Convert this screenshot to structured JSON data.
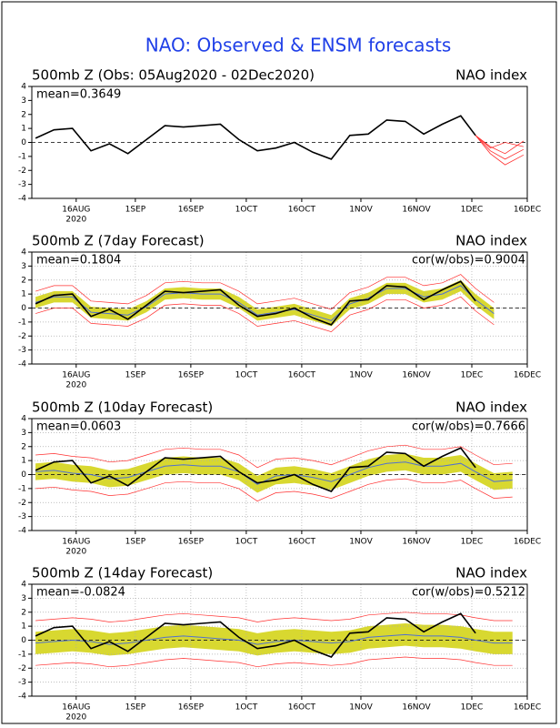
{
  "title": "NAO: Observed & ENSM forecasts",
  "chart_data": [
    {
      "type": "line",
      "title": "500mb Z (Obs: 05Aug2020 - 02Dec2020)",
      "right_title": "NAO index",
      "annotation": "mean=0.3649",
      "x": [
        "2020-08-05",
        "2020-08-10",
        "2020-08-15",
        "2020-08-20",
        "2020-08-25",
        "2020-08-30",
        "2020-09-04",
        "2020-09-09",
        "2020-09-14",
        "2020-09-19",
        "2020-09-24",
        "2020-09-29",
        "2020-10-04",
        "2020-10-09",
        "2020-10-14",
        "2020-10-19",
        "2020-10-24",
        "2020-10-29",
        "2020-11-03",
        "2020-11-08",
        "2020-11-13",
        "2020-11-18",
        "2020-11-23",
        "2020-11-28",
        "2020-12-02"
      ],
      "xlim": [
        "2020-08-04",
        "2020-12-16"
      ],
      "xticks": [
        {
          "value": "2020-08-16",
          "label": "16AUG"
        },
        {
          "value": "2020-09-01",
          "label": "1SEP"
        },
        {
          "value": "2020-09-16",
          "label": "16SEP"
        },
        {
          "value": "2020-10-01",
          "label": "1OCT"
        },
        {
          "value": "2020-10-16",
          "label": "16OCT"
        },
        {
          "value": "2020-11-01",
          "label": "1NOV"
        },
        {
          "value": "2020-11-16",
          "label": "16NOV"
        },
        {
          "value": "2020-12-01",
          "label": "1DEC"
        },
        {
          "value": "2020-12-16",
          "label": "16DEC"
        }
      ],
      "year_label": "2020",
      "ylim": [
        -4,
        4
      ],
      "yticks": [
        -4,
        -3,
        -2,
        -1,
        0,
        1,
        2,
        3,
        4
      ],
      "grid": false,
      "zero_line": true,
      "bands": [],
      "series": [
        {
          "color": "#000000",
          "width": 1.6,
          "values": [
            0.3,
            0.9,
            1.0,
            -0.6,
            -0.1,
            -0.8,
            0.2,
            1.2,
            1.1,
            1.2,
            1.3,
            0.2,
            -0.6,
            -0.4,
            0.0,
            -0.7,
            -1.2,
            0.5,
            0.6,
            1.6,
            1.5,
            0.6,
            1.3,
            1.9,
            0.5
          ]
        },
        {
          "color": "#ff3030",
          "width": 0.8,
          "x": [
            "2020-12-02",
            "2020-12-06",
            "2020-12-10",
            "2020-12-15"
          ],
          "values": [
            0.5,
            -0.6,
            -1.2,
            -0.5
          ]
        },
        {
          "color": "#ff3030",
          "width": 0.8,
          "x": [
            "2020-12-02",
            "2020-12-06",
            "2020-12-10",
            "2020-12-15"
          ],
          "values": [
            0.5,
            -0.3,
            -0.8,
            0.1
          ]
        },
        {
          "color": "#ff3030",
          "width": 0.8,
          "x": [
            "2020-12-02",
            "2020-12-06",
            "2020-12-10",
            "2020-12-15"
          ],
          "values": [
            0.5,
            -0.8,
            -1.6,
            -0.9
          ]
        },
        {
          "color": "#ff3030",
          "width": 0.8,
          "x": [
            "2020-12-02",
            "2020-12-06",
            "2020-12-10",
            "2020-12-15"
          ],
          "values": [
            0.5,
            -0.4,
            0.0,
            -0.3
          ]
        }
      ]
    },
    {
      "type": "line",
      "title": "500mb Z (7day Forecast)",
      "right_title": "NAO index",
      "annotation": "mean=0.1804",
      "annotation_right": "cor(w/obs)=0.9004",
      "x": [
        "2020-08-05",
        "2020-08-10",
        "2020-08-15",
        "2020-08-20",
        "2020-08-25",
        "2020-08-30",
        "2020-09-04",
        "2020-09-09",
        "2020-09-14",
        "2020-09-19",
        "2020-09-24",
        "2020-09-29",
        "2020-10-04",
        "2020-10-09",
        "2020-10-14",
        "2020-10-19",
        "2020-10-24",
        "2020-10-29",
        "2020-11-03",
        "2020-11-08",
        "2020-11-13",
        "2020-11-18",
        "2020-11-23",
        "2020-11-28",
        "2020-12-02",
        "2020-12-07"
      ],
      "xlim": [
        "2020-08-04",
        "2020-12-16"
      ],
      "xticks": [
        {
          "value": "2020-08-16",
          "label": "16AUG"
        },
        {
          "value": "2020-09-01",
          "label": "1SEP"
        },
        {
          "value": "2020-09-16",
          "label": "16SEP"
        },
        {
          "value": "2020-10-01",
          "label": "1OCT"
        },
        {
          "value": "2020-10-16",
          "label": "16OCT"
        },
        {
          "value": "2020-11-01",
          "label": "1NOV"
        },
        {
          "value": "2020-11-16",
          "label": "16NOV"
        },
        {
          "value": "2020-12-01",
          "label": "1DEC"
        },
        {
          "value": "2020-12-16",
          "label": "16DEC"
        }
      ],
      "year_label": "2020",
      "ylim": [
        -4,
        4
      ],
      "yticks": [
        -4,
        -3,
        -2,
        -1,
        0,
        1,
        2,
        3,
        4
      ],
      "grid": true,
      "zero_line": true,
      "bands": [
        {
          "color": "#d8d830",
          "low": [
            0.0,
            0.4,
            0.4,
            -0.7,
            -0.8,
            -0.9,
            -0.3,
            0.6,
            0.7,
            0.6,
            0.6,
            0.0,
            -0.9,
            -0.7,
            -0.5,
            -0.9,
            -1.3,
            -0.1,
            0.3,
            1.0,
            1.0,
            0.4,
            0.6,
            1.2,
            0.2,
            -0.8
          ],
          "high": [
            0.8,
            1.2,
            1.2,
            0.1,
            0.0,
            -0.1,
            0.5,
            1.4,
            1.5,
            1.4,
            1.4,
            0.8,
            -0.1,
            0.1,
            0.3,
            -0.1,
            -0.5,
            0.7,
            1.1,
            1.8,
            1.8,
            1.2,
            1.4,
            2.0,
            1.0,
            0.0
          ]
        }
      ],
      "series": [
        {
          "color": "#ff3030",
          "width": 0.7,
          "values": [
            -0.4,
            0.0,
            0.0,
            -1.1,
            -1.2,
            -1.3,
            -0.7,
            0.2,
            0.3,
            0.2,
            0.2,
            -0.4,
            -1.3,
            -1.1,
            -0.9,
            -1.3,
            -1.7,
            -0.5,
            -0.1,
            0.6,
            0.6,
            0.0,
            0.2,
            0.8,
            -0.2,
            -1.2
          ]
        },
        {
          "color": "#ff3030",
          "width": 0.7,
          "values": [
            1.2,
            1.6,
            1.6,
            0.5,
            0.4,
            0.3,
            0.9,
            1.8,
            1.9,
            1.8,
            1.8,
            1.2,
            0.3,
            0.5,
            0.7,
            0.3,
            -0.1,
            1.1,
            1.5,
            2.2,
            2.2,
            1.6,
            1.8,
            2.4,
            1.4,
            0.4
          ]
        },
        {
          "color": "#5070d0",
          "width": 1,
          "values": [
            0.4,
            0.8,
            0.8,
            -0.3,
            -0.4,
            -0.5,
            0.1,
            1.0,
            1.1,
            1.0,
            1.0,
            0.4,
            -0.5,
            -0.3,
            -0.1,
            -0.5,
            -0.9,
            0.3,
            0.7,
            1.4,
            1.4,
            0.8,
            1.0,
            1.6,
            0.6,
            -0.4
          ]
        },
        {
          "color": "#000000",
          "width": 1.6,
          "values": [
            0.3,
            0.9,
            1.0,
            -0.6,
            -0.1,
            -0.8,
            0.2,
            1.2,
            1.1,
            1.2,
            1.3,
            0.2,
            -0.6,
            -0.4,
            0.0,
            -0.7,
            -1.2,
            0.5,
            0.6,
            1.6,
            1.5,
            0.6,
            1.3,
            1.9,
            0.5,
            null
          ]
        }
      ]
    },
    {
      "type": "line",
      "title": "500mb Z (10day Forecast)",
      "right_title": "NAO index",
      "annotation": "mean=0.0603",
      "annotation_right": "cor(w/obs)=0.7666",
      "x": [
        "2020-08-05",
        "2020-08-10",
        "2020-08-15",
        "2020-08-20",
        "2020-08-25",
        "2020-08-30",
        "2020-09-04",
        "2020-09-09",
        "2020-09-14",
        "2020-09-19",
        "2020-09-24",
        "2020-09-29",
        "2020-10-04",
        "2020-10-09",
        "2020-10-14",
        "2020-10-19",
        "2020-10-24",
        "2020-10-29",
        "2020-11-03",
        "2020-11-08",
        "2020-11-13",
        "2020-11-18",
        "2020-11-23",
        "2020-11-28",
        "2020-12-02",
        "2020-12-07",
        "2020-12-12"
      ],
      "xlim": [
        "2020-08-04",
        "2020-12-16"
      ],
      "xticks": [
        {
          "value": "2020-08-16",
          "label": "16AUG"
        },
        {
          "value": "2020-09-01",
          "label": "1SEP"
        },
        {
          "value": "2020-09-16",
          "label": "16SEP"
        },
        {
          "value": "2020-10-01",
          "label": "1OCT"
        },
        {
          "value": "2020-10-16",
          "label": "16OCT"
        },
        {
          "value": "2020-11-01",
          "label": "1NOV"
        },
        {
          "value": "2020-11-16",
          "label": "16NOV"
        },
        {
          "value": "2020-12-01",
          "label": "1DEC"
        },
        {
          "value": "2020-12-16",
          "label": "16DEC"
        }
      ],
      "year_label": "2020",
      "ylim": [
        -4,
        4
      ],
      "yticks": [
        -4,
        -3,
        -2,
        -1,
        0,
        1,
        2,
        3,
        4
      ],
      "grid": true,
      "zero_line": true,
      "bands": [
        {
          "color": "#d8d830",
          "low": [
            -0.4,
            -0.3,
            -0.5,
            -0.6,
            -0.9,
            -0.8,
            -0.4,
            0.0,
            0.1,
            0.0,
            0.0,
            -0.4,
            -1.3,
            -0.7,
            -0.6,
            -0.8,
            -1.1,
            -0.6,
            -0.1,
            0.2,
            0.3,
            0.0,
            0.0,
            0.2,
            -0.4,
            -1.1,
            -1.0
          ],
          "high": [
            0.8,
            0.9,
            0.7,
            0.6,
            0.3,
            0.4,
            0.8,
            1.2,
            1.3,
            1.2,
            1.2,
            0.8,
            -0.1,
            0.5,
            0.6,
            0.4,
            0.1,
            0.6,
            1.1,
            1.4,
            1.5,
            1.2,
            1.2,
            1.4,
            0.8,
            0.1,
            0.2
          ]
        }
      ],
      "series": [
        {
          "color": "#ff3030",
          "width": 0.7,
          "values": [
            -1.0,
            -0.9,
            -1.1,
            -1.2,
            -1.5,
            -1.4,
            -1.0,
            -0.6,
            -0.5,
            -0.6,
            -0.6,
            -1.0,
            -1.9,
            -1.3,
            -1.2,
            -1.4,
            -1.7,
            -1.2,
            -0.7,
            -0.4,
            -0.3,
            -0.6,
            -0.6,
            -0.4,
            -1.0,
            -1.7,
            -1.6
          ]
        },
        {
          "color": "#ff3030",
          "width": 0.7,
          "values": [
            1.4,
            1.5,
            1.3,
            1.2,
            0.9,
            1.0,
            1.4,
            1.8,
            1.9,
            1.8,
            1.8,
            1.4,
            0.5,
            1.1,
            1.2,
            1.0,
            0.7,
            1.2,
            1.7,
            2.0,
            2.1,
            1.8,
            1.8,
            2.0,
            1.4,
            0.7,
            0.8
          ]
        },
        {
          "color": "#5070d0",
          "width": 1,
          "values": [
            0.2,
            0.3,
            0.1,
            0.0,
            -0.3,
            -0.2,
            0.2,
            0.6,
            0.7,
            0.6,
            0.6,
            0.2,
            -0.7,
            -0.1,
            0.0,
            -0.2,
            -0.5,
            0.0,
            0.5,
            0.8,
            0.9,
            0.6,
            0.6,
            0.8,
            0.2,
            -0.5,
            -0.4
          ]
        },
        {
          "color": "#000000",
          "width": 1.6,
          "values": [
            0.3,
            0.9,
            1.0,
            -0.6,
            -0.1,
            -0.8,
            0.2,
            1.2,
            1.1,
            1.2,
            1.3,
            0.2,
            -0.6,
            -0.4,
            0.0,
            -0.7,
            -1.2,
            0.5,
            0.6,
            1.6,
            1.5,
            0.6,
            1.3,
            1.9,
            0.5,
            null,
            null
          ]
        }
      ]
    },
    {
      "type": "line",
      "title": "500mb Z (14day Forecast)",
      "right_title": "NAO index",
      "annotation": "mean=-0.0824",
      "annotation_right": "cor(w/obs)=0.5212",
      "x": [
        "2020-08-05",
        "2020-08-10",
        "2020-08-15",
        "2020-08-20",
        "2020-08-25",
        "2020-08-30",
        "2020-09-04",
        "2020-09-09",
        "2020-09-14",
        "2020-09-19",
        "2020-09-24",
        "2020-09-29",
        "2020-10-04",
        "2020-10-09",
        "2020-10-14",
        "2020-10-19",
        "2020-10-24",
        "2020-10-29",
        "2020-11-03",
        "2020-11-08",
        "2020-11-13",
        "2020-11-18",
        "2020-11-23",
        "2020-11-28",
        "2020-12-02",
        "2020-12-07",
        "2020-12-12"
      ],
      "xlim": [
        "2020-08-04",
        "2020-12-16"
      ],
      "xticks": [
        {
          "value": "2020-08-16",
          "label": "16AUG"
        },
        {
          "value": "2020-09-01",
          "label": "1SEP"
        },
        {
          "value": "2020-09-16",
          "label": "16SEP"
        },
        {
          "value": "2020-10-01",
          "label": "1OCT"
        },
        {
          "value": "2020-10-16",
          "label": "16OCT"
        },
        {
          "value": "2020-11-01",
          "label": "1NOV"
        },
        {
          "value": "2020-11-16",
          "label": "16NOV"
        },
        {
          "value": "2020-12-01",
          "label": "1DEC"
        },
        {
          "value": "2020-12-16",
          "label": "16DEC"
        }
      ],
      "year_label": "2020",
      "ylim": [
        -4,
        4
      ],
      "yticks": [
        -4,
        -3,
        -2,
        -1,
        0,
        1,
        2,
        3,
        4
      ],
      "grid": true,
      "zero_line": true,
      "bands": [
        {
          "color": "#d8d830",
          "low": [
            -1.0,
            -0.9,
            -0.8,
            -0.9,
            -1.1,
            -1.0,
            -0.8,
            -0.6,
            -0.5,
            -0.6,
            -0.7,
            -0.8,
            -1.1,
            -0.9,
            -0.8,
            -0.9,
            -1.0,
            -0.9,
            -0.6,
            -0.5,
            -0.4,
            -0.5,
            -0.5,
            -0.6,
            -0.8,
            -1.0,
            -1.0
          ],
          "high": [
            0.6,
            0.7,
            0.8,
            0.7,
            0.5,
            0.6,
            0.8,
            1.0,
            1.1,
            1.0,
            0.9,
            0.8,
            0.5,
            0.7,
            0.8,
            0.7,
            0.6,
            0.7,
            1.0,
            1.1,
            1.2,
            1.1,
            1.1,
            1.0,
            0.8,
            0.6,
            0.6
          ]
        }
      ],
      "series": [
        {
          "color": "#ff3030",
          "width": 0.7,
          "values": [
            -1.8,
            -1.7,
            -1.6,
            -1.7,
            -1.9,
            -1.8,
            -1.6,
            -1.4,
            -1.3,
            -1.4,
            -1.5,
            -1.6,
            -1.9,
            -1.7,
            -1.6,
            -1.7,
            -1.8,
            -1.7,
            -1.4,
            -1.3,
            -1.2,
            -1.3,
            -1.3,
            -1.4,
            -1.6,
            -1.8,
            -1.8
          ]
        },
        {
          "color": "#ff3030",
          "width": 0.7,
          "values": [
            1.4,
            1.5,
            1.6,
            1.5,
            1.3,
            1.4,
            1.6,
            1.8,
            1.9,
            1.8,
            1.7,
            1.6,
            1.3,
            1.5,
            1.6,
            1.5,
            1.4,
            1.5,
            1.8,
            1.9,
            2.0,
            1.9,
            1.9,
            1.8,
            1.6,
            1.4,
            1.4
          ]
        },
        {
          "color": "#5070d0",
          "width": 1,
          "values": [
            -0.2,
            -0.1,
            0.0,
            -0.1,
            -0.3,
            -0.2,
            0.0,
            0.2,
            0.3,
            0.2,
            0.1,
            0.0,
            -0.3,
            -0.1,
            0.0,
            -0.1,
            -0.2,
            -0.1,
            0.2,
            0.3,
            0.4,
            0.3,
            0.3,
            0.2,
            0.0,
            -0.2,
            -0.2
          ]
        },
        {
          "color": "#000000",
          "width": 1.6,
          "values": [
            0.3,
            0.9,
            1.0,
            -0.6,
            -0.1,
            -0.8,
            0.2,
            1.2,
            1.1,
            1.2,
            1.3,
            0.2,
            -0.6,
            -0.4,
            0.0,
            -0.7,
            -1.2,
            0.5,
            0.6,
            1.6,
            1.5,
            0.6,
            1.3,
            1.9,
            0.5,
            null,
            null
          ]
        }
      ]
    }
  ]
}
